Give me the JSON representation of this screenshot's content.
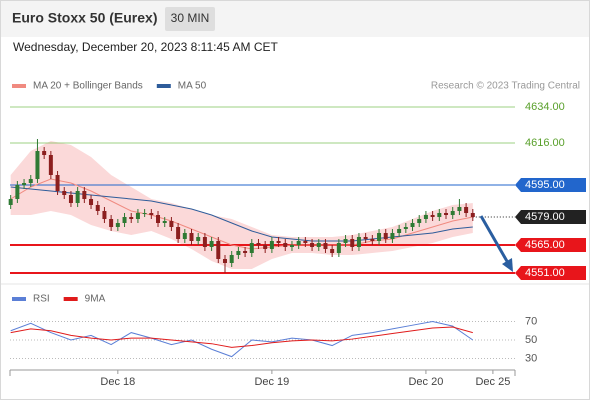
{
  "header": {
    "title": "Euro Stoxx 50 (Eurex)",
    "timeframe": "30 MIN",
    "timestamp": "Wednesday, December 20, 2023 8:11:45 AM CET",
    "credit": "Research © 2023 Trading Central"
  },
  "chart_data": [
    {
      "type": "candlestick",
      "x": [
        0,
        1,
        2,
        3,
        4,
        5,
        6,
        7,
        8,
        9,
        10,
        11,
        12,
        13,
        14,
        15,
        16,
        17,
        18,
        19,
        20,
        21,
        22,
        23,
        24,
        25,
        26,
        27,
        28,
        29,
        30,
        31,
        32,
        33,
        34,
        35,
        36,
        37,
        38,
        39,
        40,
        41,
        42,
        43,
        44,
        45,
        46,
        47,
        48,
        49,
        50,
        51,
        52,
        53,
        54,
        55,
        56,
        57,
        58,
        59,
        60,
        61,
        62,
        63,
        64,
        65,
        66,
        67,
        68,
        69
      ],
      "open": [
        4585,
        4588,
        4595,
        4596,
        4598,
        4612,
        4610,
        4600,
        4592,
        4590,
        4586,
        4592,
        4588,
        4585,
        4582,
        4578,
        4574,
        4576,
        4579,
        4578,
        4581,
        4581,
        4580,
        4576,
        4577,
        4574,
        4568,
        4571,
        4567,
        4569,
        4564,
        4567,
        4558,
        4556,
        4560,
        4562,
        4561,
        4566,
        4565,
        4563,
        4567,
        4566,
        4564,
        4565,
        4567,
        4566,
        4564,
        4566,
        4563,
        4561,
        4566,
        4568,
        4564,
        4569,
        4568,
        4567,
        4571,
        4568,
        4571,
        4573,
        4574,
        4576,
        4578,
        4580,
        4579,
        4581,
        4580,
        4582,
        4584,
        4581
      ],
      "high": [
        4590,
        4597,
        4598,
        4600,
        4618,
        4614,
        4612,
        4602,
        4594,
        4592,
        4594,
        4594,
        4590,
        4587,
        4584,
        4580,
        4578,
        4581,
        4581,
        4583,
        4583,
        4583,
        4582,
        4579,
        4579,
        4576,
        4573,
        4573,
        4571,
        4571,
        4569,
        4569,
        4560,
        4562,
        4564,
        4564,
        4568,
        4568,
        4567,
        4569,
        4569,
        4568,
        4567,
        4569,
        4569,
        4568,
        4568,
        4568,
        4565,
        4568,
        4570,
        4570,
        4571,
        4571,
        4570,
        4573,
        4573,
        4573,
        4575,
        4576,
        4578,
        4580,
        4582,
        4582,
        4583,
        4583,
        4584,
        4588,
        4586,
        4583
      ],
      "low": [
        4583,
        4586,
        4593,
        4594,
        4596,
        4608,
        4598,
        4590,
        4588,
        4584,
        4584,
        4586,
        4583,
        4580,
        4576,
        4572,
        4572,
        4574,
        4576,
        4576,
        4579,
        4578,
        4574,
        4574,
        4572,
        4566,
        4566,
        4565,
        4565,
        4562,
        4562,
        4556,
        4551,
        4554,
        4558,
        4559,
        4559,
        4563,
        4561,
        4561,
        4564,
        4562,
        4562,
        4563,
        4564,
        4562,
        4562,
        4561,
        4559,
        4559,
        4564,
        4562,
        4562,
        4566,
        4565,
        4565,
        4566,
        4566,
        4569,
        4571,
        4572,
        4574,
        4576,
        4577,
        4577,
        4578,
        4578,
        4580,
        4579,
        4577
      ],
      "close": [
        4588,
        4595,
        4596,
        4598,
        4612,
        4610,
        4600,
        4592,
        4590,
        4586,
        4592,
        4588,
        4585,
        4582,
        4578,
        4574,
        4576,
        4579,
        4578,
        4581,
        4581,
        4580,
        4576,
        4577,
        4574,
        4568,
        4571,
        4567,
        4569,
        4564,
        4567,
        4558,
        4556,
        4560,
        4562,
        4561,
        4566,
        4565,
        4563,
        4567,
        4566,
        4564,
        4565,
        4567,
        4566,
        4564,
        4566,
        4563,
        4561,
        4566,
        4568,
        4564,
        4569,
        4568,
        4567,
        4571,
        4568,
        4571,
        4573,
        4574,
        4576,
        4578,
        4580,
        4579,
        4581,
        4580,
        4582,
        4584,
        4581,
        4579
      ],
      "up_color": "#2f7a34",
      "down_color": "#8c1f1f",
      "band": {
        "color": "#fbd9d9",
        "x": [
          0,
          3,
          6,
          9,
          12,
          15,
          18,
          21,
          24,
          27,
          30,
          33,
          36,
          39,
          42,
          45,
          48,
          51,
          54,
          57,
          60,
          63,
          66,
          69
        ],
        "upper": [
          4600,
          4612,
          4617,
          4615,
          4609,
          4600,
          4594,
          4588,
          4586,
          4583,
          4580,
          4578,
          4574,
          4570,
          4569,
          4569,
          4569,
          4570,
          4572,
          4574,
          4578,
          4582,
          4585,
          4586
        ],
        "lower": [
          4580,
          4580,
          4582,
          4580,
          4575,
          4572,
          4570,
          4572,
          4568,
          4563,
          4557,
          4553,
          4553,
          4558,
          4561,
          4561,
          4560,
          4560,
          4561,
          4562,
          4564,
          4566,
          4569,
          4571
        ]
      },
      "series": [
        {
          "name": "MA 20 + Bollinger Bands",
          "color": "#f08a80",
          "x": [
            0,
            3,
            6,
            9,
            12,
            15,
            18,
            21,
            24,
            27,
            30,
            33,
            36,
            39,
            42,
            45,
            48,
            51,
            54,
            57,
            60,
            63,
            66,
            69
          ],
          "values": [
            4588,
            4594,
            4598,
            4596,
            4592,
            4587,
            4582,
            4580,
            4577,
            4573,
            4569,
            4565,
            4563,
            4564,
            4565,
            4565,
            4565,
            4565,
            4567,
            4568,
            4571,
            4574,
            4577,
            4579
          ]
        },
        {
          "name": "MA 50",
          "color": "#2e5c9a",
          "x": [
            0,
            3,
            6,
            9,
            12,
            15,
            18,
            21,
            24,
            27,
            30,
            33,
            36,
            39,
            42,
            45,
            48,
            51,
            54,
            57,
            60,
            63,
            66,
            69
          ],
          "values": [
            4594,
            4593,
            4592,
            4591,
            4590,
            4589,
            4588,
            4587,
            4585,
            4583,
            4580,
            4576,
            4572,
            4569,
            4568,
            4567,
            4567,
            4567,
            4568,
            4569,
            4570,
            4571,
            4573,
            4574
          ]
        }
      ],
      "levels": [
        {
          "value": 4634,
          "label": "4634.00",
          "color": "#7cc05a",
          "style": "line"
        },
        {
          "value": 4616,
          "label": "4616.00",
          "color": "#7cc05a",
          "style": "line"
        },
        {
          "value": 4595,
          "label": "4595.00",
          "color": "#2266cc",
          "style": "box"
        },
        {
          "value": 4579,
          "label": "4579.00",
          "color": "#222222",
          "style": "dotted"
        },
        {
          "value": 4565,
          "label": "4565.00",
          "color": "#e8151b",
          "style": "box-thick"
        },
        {
          "value": 4551,
          "label": "4551.00",
          "color": "#e8151b",
          "style": "box-thick"
        }
      ],
      "xlim": [
        -0.1,
        75.3
      ],
      "ylim": [
        4546,
        4639.5
      ]
    },
    {
      "type": "line",
      "x": [
        0,
        3,
        6,
        9,
        12,
        15,
        18,
        21,
        24,
        27,
        30,
        33,
        36,
        39,
        42,
        45,
        48,
        51,
        54,
        57,
        60,
        63,
        66,
        69
      ],
      "series": [
        {
          "name": "RSI",
          "color": "#5b7fd6",
          "values": [
            60,
            68,
            58,
            50,
            55,
            45,
            58,
            52,
            45,
            50,
            40,
            32,
            50,
            48,
            52,
            50,
            44,
            55,
            58,
            62,
            66,
            70,
            65,
            50
          ]
        },
        {
          "name": "9MA",
          "color": "#e01b1b",
          "values": [
            58,
            62,
            60,
            55,
            52,
            50,
            52,
            52,
            50,
            48,
            46,
            42,
            44,
            47,
            49,
            50,
            49,
            51,
            54,
            57,
            60,
            63,
            64,
            58
          ]
        }
      ],
      "xlim": [
        -0.1,
        75.3
      ],
      "ylim": [
        20,
        85
      ],
      "yticks": [
        70,
        50,
        30
      ],
      "xticks": [
        {
          "value": 16,
          "label": "Dec 18"
        },
        {
          "value": 39,
          "label": "Dec 19"
        },
        {
          "value": 62,
          "label": "Dec 20"
        },
        {
          "value": 72,
          "label": "Dec 25"
        }
      ]
    }
  ]
}
